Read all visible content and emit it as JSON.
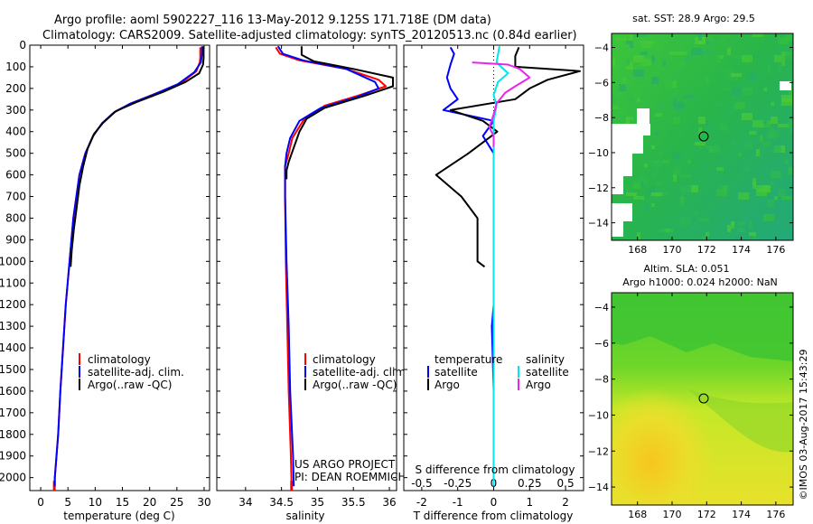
{
  "header": {
    "line1": "Argo profile: aoml 5902227_116 13-May-2012 9.125S 171.718E (DM data)",
    "line2": "Climatology: CARS2009. Satellite-adjusted climatology: synTS_20120513.nc (0.84d earlier)"
  },
  "side_label": "©IMOS 03-Aug-2017 15:43:29",
  "colors": {
    "climatology": "#ff0000",
    "satellite": "#0000ff",
    "argo": "#000000",
    "sal_satellite": "#00e5ee",
    "sal_argo": "#ee22ee"
  },
  "chart_data": [
    {
      "type": "line",
      "title": "",
      "xlabel": "temperature (deg C)",
      "ylabel": "",
      "xlim": [
        -2,
        31
      ],
      "ylim": [
        2060,
        0
      ],
      "xticks": [
        0,
        5,
        10,
        15,
        20,
        25,
        30
      ],
      "yticks": [
        0,
        100,
        200,
        300,
        400,
        500,
        600,
        700,
        800,
        900,
        1000,
        1100,
        1200,
        1300,
        1400,
        1500,
        1600,
        1700,
        1800,
        1900,
        2000
      ],
      "legend": [
        "climatology",
        "satellite-adj. clim.",
        "Argo(..raw -QC)"
      ],
      "series": [
        {
          "name": "climatology",
          "color": "#ff0000",
          "points": [
            [
              29.3,
              10
            ],
            [
              29.3,
              60
            ],
            [
              29.2,
              80
            ],
            [
              28.6,
              120
            ],
            [
              25.8,
              175
            ],
            [
              21,
              225
            ],
            [
              16.5,
              270
            ],
            [
              13.5,
              310
            ],
            [
              11.3,
              360
            ],
            [
              9.6,
              420
            ],
            [
              8.2,
              500
            ],
            [
              7.1,
              600
            ],
            [
              6,
              800
            ],
            [
              5.3,
              1000
            ],
            [
              4.6,
              1200
            ],
            [
              4.1,
              1400
            ],
            [
              3.6,
              1600
            ],
            [
              3.2,
              1800
            ],
            [
              2.6,
              2000
            ],
            [
              2.5,
              2040
            ]
          ]
        },
        {
          "name": "satellite-adj. clim.",
          "color": "#0000ff",
          "points": [
            [
              29.6,
              5
            ],
            [
              29.6,
              40
            ],
            [
              29.4,
              80
            ],
            [
              28.2,
              125
            ],
            [
              25.2,
              180
            ],
            [
              20.6,
              230
            ],
            [
              16.3,
              272
            ],
            [
              13.5,
              310
            ],
            [
              11.3,
              360
            ],
            [
              9.6,
              420
            ],
            [
              8.2,
              500
            ],
            [
              7.1,
              600
            ],
            [
              6,
              800
            ],
            [
              5.3,
              1000
            ],
            [
              4.6,
              1200
            ],
            [
              4.1,
              1400
            ],
            [
              3.6,
              1600
            ],
            [
              3.2,
              1800
            ],
            [
              2.6,
              2000
            ],
            [
              2.6,
              2040
            ]
          ]
        },
        {
          "name": "Argo(..raw -QC)",
          "color": "#000000",
          "points": [
            [
              29.9,
              5
            ],
            [
              29.9,
              60
            ],
            [
              29.8,
              90
            ],
            [
              29.1,
              130
            ],
            [
              26.6,
              170
            ],
            [
              22.6,
              215
            ],
            [
              17.4,
              265
            ],
            [
              13.8,
              305
            ],
            [
              11.4,
              360
            ],
            [
              9.8,
              410
            ],
            [
              8.6,
              480
            ],
            [
              7.8,
              560
            ],
            [
              7.1,
              650
            ],
            [
              6.6,
              750
            ],
            [
              6.1,
              850
            ],
            [
              5.7,
              950
            ],
            [
              5.5,
              1025
            ]
          ]
        }
      ]
    },
    {
      "type": "line",
      "title": "",
      "xlabel": "salinity",
      "ylabel": "",
      "xlim": [
        33.6,
        36.1
      ],
      "ylim": [
        2060,
        0
      ],
      "xticks": [
        34,
        34.5,
        35,
        35.5,
        36
      ],
      "legend": [
        "climatology",
        "satellite-adj. clim.",
        "Argo(..raw -QC)"
      ],
      "annotations": [
        "US ARGO PROJECT",
        "PI: DEAN ROEMMICH"
      ],
      "series": [
        {
          "name": "climatology",
          "color": "#ff0000",
          "points": [
            [
              34.42,
              10
            ],
            [
              34.48,
              40
            ],
            [
              34.75,
              70
            ],
            [
              35.4,
              110
            ],
            [
              35.85,
              160
            ],
            [
              35.95,
              190
            ],
            [
              35.6,
              230
            ],
            [
              35.1,
              280
            ],
            [
              34.8,
              350
            ],
            [
              34.65,
              430
            ],
            [
              34.6,
              500
            ],
            [
              34.55,
              560
            ],
            [
              34.55,
              700
            ],
            [
              34.56,
              1000
            ],
            [
              34.58,
              1300
            ],
            [
              34.6,
              1600
            ],
            [
              34.63,
              1900
            ],
            [
              34.64,
              2040
            ]
          ]
        },
        {
          "name": "satellite-adj. clim.",
          "color": "#0000ff",
          "points": [
            [
              34.45,
              5
            ],
            [
              34.52,
              40
            ],
            [
              34.8,
              70
            ],
            [
              35.4,
              110
            ],
            [
              35.8,
              170
            ],
            [
              35.85,
              200
            ],
            [
              35.55,
              240
            ],
            [
              35.05,
              290
            ],
            [
              34.75,
              350
            ],
            [
              34.62,
              430
            ],
            [
              34.57,
              500
            ],
            [
              34.55,
              560
            ],
            [
              34.55,
              700
            ],
            [
              34.57,
              1000
            ],
            [
              34.6,
              1300
            ],
            [
              34.62,
              1600
            ],
            [
              34.66,
              1900
            ],
            [
              34.67,
              2040
            ]
          ]
        },
        {
          "name": "Argo(..raw -QC)",
          "color": "#000000",
          "points": [
            [
              34.78,
              5
            ],
            [
              34.78,
              45
            ],
            [
              34.95,
              75
            ],
            [
              35.5,
              110
            ],
            [
              36.05,
              150
            ],
            [
              36.05,
              190
            ],
            [
              35.65,
              235
            ],
            [
              35.1,
              290
            ],
            [
              34.85,
              340
            ],
            [
              34.75,
              400
            ],
            [
              34.6,
              540
            ],
            [
              34.57,
              580
            ],
            [
              34.57,
              620
            ]
          ]
        }
      ]
    },
    {
      "type": "line",
      "title": "",
      "xlabel": "T difference from climatology",
      "xlabel2": "S difference from climatology",
      "ylabel": "",
      "xlim": [
        -2.5,
        2.5
      ],
      "x2lim": [
        -0.625,
        0.625
      ],
      "ylim": [
        2060,
        0
      ],
      "xticks": [
        -2,
        -1,
        0,
        1,
        2
      ],
      "x2ticks": [
        -0.5,
        -0.25,
        0,
        0.25,
        0.5
      ],
      "legend_titles": [
        "temperature",
        "salinity"
      ],
      "legend": [
        "satellite",
        "Argo",
        "satellite",
        "Argo"
      ],
      "series": [
        {
          "name": "temperature satellite",
          "color": "#0000ff",
          "points": [
            [
              -1.2,
              10
            ],
            [
              -1.1,
              40
            ],
            [
              -1.2,
              90
            ],
            [
              -1.3,
              150
            ],
            [
              -1.2,
              200
            ],
            [
              -1,
              250
            ],
            [
              -1.4,
              300
            ],
            [
              0,
              350
            ],
            [
              -0.3,
              420
            ],
            [
              0,
              500
            ],
            [
              0,
              1000
            ],
            [
              0,
              1200
            ],
            [
              -0.05,
              1300
            ],
            [
              0,
              1600
            ],
            [
              0,
              2040
            ]
          ]
        },
        {
          "name": "temperature Argo",
          "color": "#000000",
          "points": [
            [
              0.7,
              10
            ],
            [
              0.6,
              50
            ],
            [
              0.6,
              100
            ],
            [
              2.4,
              120
            ],
            [
              1.5,
              160
            ],
            [
              1,
              200
            ],
            [
              0.6,
              250
            ],
            [
              -1.2,
              300
            ],
            [
              -0.3,
              350
            ],
            [
              0.1,
              400
            ],
            [
              -0.7,
              500
            ],
            [
              -1.6,
              600
            ],
            [
              -0.9,
              700
            ],
            [
              -0.45,
              800
            ],
            [
              -0.45,
              1000
            ],
            [
              -0.25,
              1025
            ]
          ]
        },
        {
          "name": "salinity satellite",
          "color": "#00e5ee",
          "points": [
            [
              0.04,
              5
            ],
            [
              0.02,
              80
            ],
            [
              0.1,
              130
            ],
            [
              0.03,
              170
            ],
            [
              0,
              230
            ],
            [
              0.02,
              280
            ],
            [
              0,
              350
            ],
            [
              0,
              800
            ],
            [
              0,
              1300
            ],
            [
              0,
              2040
            ]
          ]
        },
        {
          "name": "salinity Argo",
          "color": "#ee22ee",
          "points": [
            [
              -0.15,
              80
            ],
            [
              0.1,
              90
            ],
            [
              0.18,
              110
            ],
            [
              0.25,
              150
            ],
            [
              0.15,
              190
            ],
            [
              0.08,
              220
            ],
            [
              0.02,
              270
            ],
            [
              0,
              320
            ],
            [
              -0.03,
              380
            ],
            [
              0,
              420
            ],
            [
              0,
              470
            ]
          ]
        }
      ]
    },
    {
      "type": "heatmap",
      "title": "sat. SST: 28.9  Argo: 29.5",
      "xticks": [
        168,
        170,
        172,
        174,
        176
      ],
      "yticks": [
        -4,
        -6,
        -8,
        -10,
        -12,
        -14
      ],
      "xlim": [
        166.5,
        177
      ],
      "ylim": [
        -15,
        -3.2
      ],
      "marker": {
        "lon": 171.718,
        "lat": -9.125
      }
    },
    {
      "type": "heatmap",
      "title": "Altim. SLA: 0.051",
      "subtitle": "Argo h1000: 0.024 h2000: NaN",
      "xticks": [
        168,
        170,
        172,
        174,
        176
      ],
      "yticks": [
        -4,
        -6,
        -8,
        -10,
        -12,
        -14
      ],
      "xlim": [
        166.5,
        177
      ],
      "ylim": [
        -15,
        -3.2
      ],
      "marker": {
        "lon": 171.718,
        "lat": -9.125
      }
    }
  ]
}
